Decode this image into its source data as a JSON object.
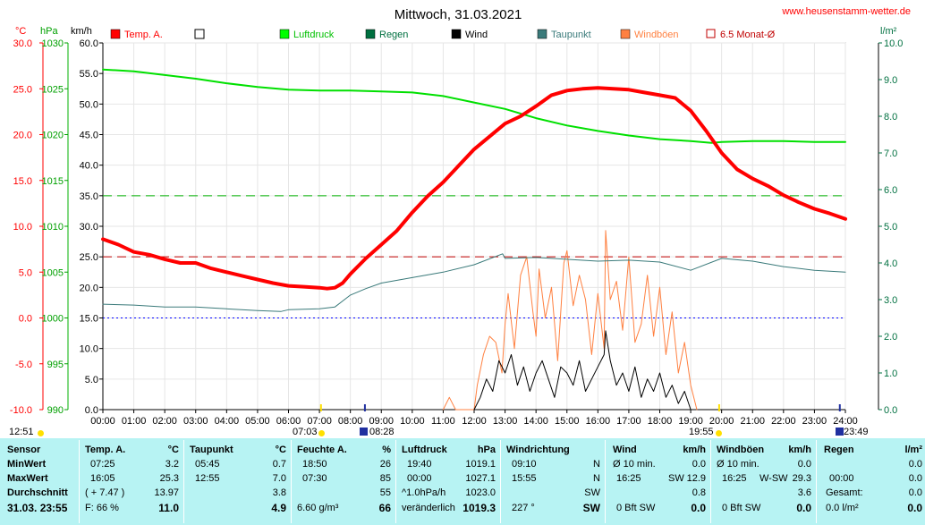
{
  "title": "Mittwoch, 31.03.2021",
  "site": "www.heusenstamm-wetter.de",
  "units_left": [
    "°C",
    "hPa",
    "km/h"
  ],
  "unit_right": "l/m²",
  "colors": {
    "temp": "#ff0000",
    "pressure": "#00e000",
    "dew": "#3a7a7a",
    "gust": "#ff8040",
    "wind": "#000000",
    "rain": "#007040",
    "red_dash": "#c00000",
    "green_dash": "#00b000",
    "blue_dot": "#0000ff"
  },
  "legend": [
    {
      "label": "Temp. A.",
      "color": "#ff0000",
      "style": "filled"
    },
    {
      "label": "",
      "color": "#ffffff",
      "style": "empty"
    },
    {
      "label": "Luftdruck",
      "color": "#00ff00",
      "style": "filled"
    },
    {
      "label": "Regen",
      "color": "#007040",
      "style": "filled"
    },
    {
      "label": "Wind",
      "color": "#000000",
      "style": "filled"
    },
    {
      "label": "Taupunkt",
      "color": "#3a7a7a",
      "style": "filled"
    },
    {
      "label": "Windböen",
      "color": "#ff8040",
      "style": "filled"
    },
    {
      "label": "6.5 Monat-Ø",
      "color": "#c00000",
      "style": "outline"
    }
  ],
  "status": {
    "left_time": "12:51",
    "sunrise": "07:03",
    "moonrise_like": "08:28",
    "sunset": "19:55",
    "moon_time": "23:49"
  },
  "chart_data": {
    "type": "line",
    "x_label_ticks": [
      "00:00",
      "01:00",
      "02:00",
      "03:00",
      "04:00",
      "05:00",
      "06:00",
      "07:00",
      "08:00",
      "09:00",
      "10:00",
      "11:00",
      "12:00",
      "13:00",
      "14:00",
      "15:00",
      "16:00",
      "17:00",
      "18:00",
      "19:00",
      "20:00",
      "21:00",
      "22:00",
      "23:00",
      "24:00"
    ],
    "x_range_hours": [
      0,
      24
    ],
    "axes": {
      "temp": {
        "min": -10,
        "max": 30,
        "ticks": [
          "30.0",
          "25.0",
          "20.0",
          "15.0",
          "10.0",
          "5.0",
          "0.0",
          "-5.0",
          "-10.0"
        ]
      },
      "pressure": {
        "min": 990,
        "max": 1030,
        "ticks": [
          "1030",
          "1025",
          "1020",
          "1015",
          "1010",
          "1005",
          "1000",
          "995",
          "990"
        ]
      },
      "wind": {
        "min": 0,
        "max": 60,
        "ticks": [
          "60.0",
          "55.0",
          "50.0",
          "45.0",
          "40.0",
          "35.0",
          "30.0",
          "25.0",
          "20.0",
          "15.0",
          "10.0",
          "5.0",
          "0.0"
        ]
      },
      "rain": {
        "min": 0,
        "max": 10,
        "ticks": [
          "10.0",
          "9.0",
          "8.0",
          "7.0",
          "6.0",
          "5.0",
          "4.0",
          "3.0",
          "2.0",
          "1.0",
          "0.0"
        ]
      }
    },
    "reference_lines": {
      "green_dashed_kmh": 35,
      "red_dashed_kmh": 25,
      "blue_dotted_temp": 0
    },
    "series": [
      {
        "name": "Temp. A.",
        "axis": "temp",
        "hours": [
          0,
          0.5,
          1,
          1.5,
          2,
          2.5,
          3,
          3.5,
          4,
          4.5,
          5,
          5.5,
          6,
          6.5,
          7,
          7.25,
          7.5,
          7.75,
          8,
          8.5,
          9,
          9.5,
          10,
          10.5,
          11,
          11.5,
          12,
          12.5,
          13,
          13.5,
          14,
          14.5,
          15,
          15.5,
          16,
          16.5,
          17,
          17.5,
          18,
          18.5,
          19,
          19.5,
          20,
          20.5,
          21,
          21.5,
          22,
          22.5,
          23,
          23.5,
          24
        ],
        "values": [
          8.6,
          8.0,
          7.2,
          6.9,
          6.4,
          6.0,
          6.0,
          5.4,
          5.0,
          4.6,
          4.2,
          3.8,
          3.5,
          3.4,
          3.3,
          3.2,
          3.3,
          3.8,
          4.8,
          6.5,
          8.0,
          9.5,
          11.5,
          13.3,
          14.8,
          16.6,
          18.4,
          19.8,
          21.2,
          22.0,
          23.1,
          24.3,
          24.8,
          25.0,
          25.1,
          25.0,
          24.9,
          24.6,
          24.3,
          24.0,
          22.6,
          20.4,
          18.0,
          16.2,
          15.2,
          14.4,
          13.4,
          12.6,
          11.9,
          11.4,
          10.8
        ]
      },
      {
        "name": "Luftdruck",
        "axis": "pressure",
        "hours": [
          0,
          1,
          2,
          3,
          4,
          5,
          6,
          7,
          8,
          9,
          10,
          11,
          12,
          13,
          14,
          15,
          16,
          17,
          18,
          19,
          19.67,
          20,
          21,
          22,
          23,
          24
        ],
        "values": [
          1027.1,
          1026.9,
          1026.5,
          1026.1,
          1025.6,
          1025.2,
          1024.9,
          1024.8,
          1024.8,
          1024.7,
          1024.6,
          1024.2,
          1023.5,
          1022.8,
          1021.8,
          1021.0,
          1020.4,
          1019.9,
          1019.5,
          1019.3,
          1019.1,
          1019.2,
          1019.3,
          1019.3,
          1019.2,
          1019.2
        ]
      },
      {
        "name": "Taupunkt",
        "axis": "temp",
        "hours": [
          0,
          1,
          2,
          3,
          4,
          5,
          5.75,
          6,
          7,
          7.5,
          8,
          8.5,
          9,
          10,
          11,
          12,
          12.92,
          13,
          14,
          15,
          16,
          17,
          18,
          19,
          20,
          21,
          22,
          23,
          24
        ],
        "values": [
          1.5,
          1.4,
          1.2,
          1.2,
          1.0,
          0.8,
          0.7,
          0.9,
          1.0,
          1.2,
          2.5,
          3.2,
          3.8,
          4.4,
          5.0,
          5.8,
          7.0,
          6.5,
          6.6,
          6.4,
          6.2,
          6.3,
          6.1,
          5.2,
          6.5,
          6.2,
          5.6,
          5.2,
          5.0
        ]
      },
      {
        "name": "Windböen",
        "axis": "wind",
        "hours": [
          11,
          11.2,
          11.4,
          12,
          12.1,
          12.3,
          12.5,
          12.7,
          12.9,
          13,
          13.1,
          13.3,
          13.5,
          13.7,
          13.9,
          14,
          14.1,
          14.3,
          14.5,
          14.7,
          14.9,
          15,
          15.2,
          15.4,
          15.6,
          15.8,
          16,
          16.2,
          16.25,
          16.4,
          16.6,
          16.8,
          17,
          17.2,
          17.4,
          17.6,
          17.8,
          18,
          18.2,
          18.4,
          18.6,
          18.8,
          19,
          19.2
        ],
        "values": [
          0,
          2,
          0,
          0,
          4,
          9,
          12,
          11,
          6,
          14,
          19,
          10,
          22,
          25,
          16,
          12,
          23,
          15,
          20,
          8,
          24,
          26,
          17,
          22,
          18,
          9,
          19,
          10,
          29.3,
          18,
          21,
          13,
          25,
          11,
          14,
          22,
          12,
          20,
          9,
          16,
          6,
          11,
          4,
          0
        ]
      },
      {
        "name": "Wind",
        "axis": "wind",
        "hours": [
          12,
          12.2,
          12.4,
          12.6,
          12.8,
          13,
          13.2,
          13.4,
          13.6,
          13.8,
          14,
          14.2,
          14.4,
          14.6,
          14.8,
          15,
          15.2,
          15.4,
          15.6,
          15.8,
          16,
          16.2,
          16.25,
          16.4,
          16.6,
          16.8,
          17,
          17.2,
          17.4,
          17.6,
          17.8,
          18,
          18.2,
          18.4,
          18.6,
          18.8,
          19
        ],
        "values": [
          0,
          2,
          5,
          3,
          8,
          6,
          9,
          4,
          7,
          3,
          6,
          8,
          5,
          2,
          7,
          6,
          4,
          8,
          3,
          5,
          7,
          9,
          12.9,
          8,
          4,
          6,
          3,
          7,
          2,
          5,
          3,
          6,
          2,
          4,
          1,
          3,
          0
        ]
      }
    ]
  },
  "stats": {
    "sensor": {
      "header": "Sensor",
      "rows": [
        "MinWert",
        "MaxWert",
        "Durchschnitt"
      ],
      "date": "31.03. 23:55"
    },
    "temp": {
      "header": "Temp. A.",
      "unit": "°C",
      "min_time": "07:25",
      "min": "3.2",
      "max_time": "16:05",
      "max": "25.3",
      "range": "( + 7.47 )",
      "avg": "13.97",
      "f_label": "F: 66 %",
      "current": "11.0"
    },
    "dew": {
      "header": "Taupunkt",
      "unit": "°C",
      "min_time": "05:45",
      "min": "0.7",
      "max_time": "12:55",
      "max": "7.0",
      "avg": "3.8",
      "current": "4.9"
    },
    "humidity": {
      "header": "Feuchte A.",
      "unit": "%",
      "min_time": "18:50",
      "min": "26",
      "max_time": "07:30",
      "max": "85",
      "avg": "55",
      "abs": "6.60 g/m³",
      "current": "66"
    },
    "pressure": {
      "header": "Luftdruck",
      "unit": "hPa",
      "min_time": "19:40",
      "min": "1019.1",
      "max_time": "00:00",
      "max": "1027.1",
      "trend": "^1.0hPa/h",
      "avg": "1023.0",
      "change": "veränderlich",
      "current": "1019.3"
    },
    "direction": {
      "header": "Windrichtung",
      "min_time": "09:10",
      "min": "N",
      "max_time": "15:55",
      "max": "N",
      "avg": "SW",
      "deg": "227 °",
      "current": "SW"
    },
    "wind": {
      "header": "Wind",
      "unit": "km/h",
      "min_label": "Ø 10 min.",
      "min": "0.0",
      "max_time": "16:25",
      "max_dir": "SW",
      "max": "12.9",
      "avg": "0.8",
      "bft": "0 Bft SW",
      "current": "0.0"
    },
    "gust": {
      "header": "Windböen",
      "unit": "km/h",
      "min_label": "Ø 10 min.",
      "min": "0.0",
      "max_time": "16:25",
      "max_dir": "W-SW",
      "max": "29.3",
      "avg": "3.6",
      "bft": "0 Bft SW",
      "current": "0.0"
    },
    "rain": {
      "header": "Regen",
      "unit": "l/m²",
      "min_time": "00:00",
      "min": "0.0",
      "max": "0.0",
      "total_label": "Gesamt:",
      "total": "0.0",
      "current_label": "0.0 l/m²",
      "current": "0.0"
    }
  }
}
